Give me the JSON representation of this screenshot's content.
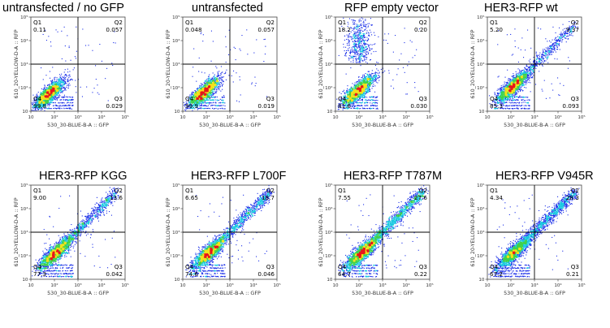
{
  "chart_data": [
    {
      "type": "scatter",
      "title": "untransfected / no GFP",
      "xlabel": "530_30-BLUE-B-A :: GFP",
      "ylabel": "610_20-YELLOW-D-A :: RFP",
      "xscale": "log",
      "yscale": "log",
      "xlim": [
        10,
        100000
      ],
      "ylim": [
        10,
        100000
      ],
      "x_ticks": [
        "10",
        "10²",
        "10³",
        "10⁴",
        "10⁵"
      ],
      "y_ticks": [
        "10",
        "10²",
        "10³",
        "10⁴",
        "10⁵"
      ],
      "gate": {
        "x": 1000,
        "y": 1000
      },
      "quadrants": [
        {
          "name": "Q1",
          "value": "0.11"
        },
        {
          "name": "Q2",
          "value": "0.057"
        },
        {
          "name": "Q3",
          "value": "0.029"
        },
        {
          "name": "Q4",
          "value": "99.8"
        }
      ],
      "population": {
        "main_center": [
          60,
          55
        ],
        "diagonal_tail": 0,
        "upper_cloud": 0
      }
    },
    {
      "type": "scatter",
      "title": "untransfected",
      "xlabel": "530_30-BLUE-B-A :: GFP",
      "ylabel": "610_20-YELLOW-D-A :: RFP",
      "xscale": "log",
      "yscale": "log",
      "xlim": [
        10,
        100000
      ],
      "ylim": [
        10,
        100000
      ],
      "x_ticks": [
        "10",
        "10²",
        "10³",
        "10⁴",
        "10⁵"
      ],
      "y_ticks": [
        "10",
        "10²",
        "10³",
        "10⁴",
        "10⁵"
      ],
      "gate": {
        "x": 1000,
        "y": 1000
      },
      "quadrants": [
        {
          "name": "Q1",
          "value": "0.048"
        },
        {
          "name": "Q2",
          "value": "0.057"
        },
        {
          "name": "Q3",
          "value": "0.019"
        },
        {
          "name": "Q4",
          "value": "99.9"
        }
      ],
      "population": {
        "main_center": [
          80,
          65
        ],
        "diagonal_tail": 0,
        "upper_cloud": 0
      }
    },
    {
      "type": "scatter",
      "title": "RFP empty vector",
      "xlabel": "530_30-BLUE-B-A :: GFP",
      "ylabel": "610_20-YELLOW-D-A :: RFP",
      "xscale": "log",
      "yscale": "log",
      "xlim": [
        10,
        100000
      ],
      "ylim": [
        10,
        100000
      ],
      "x_ticks": [
        "10",
        "10²",
        "10³",
        "10⁴",
        "10⁵"
      ],
      "y_ticks": [
        "10",
        "10²",
        "10³",
        "10⁴",
        "10⁵"
      ],
      "gate": {
        "x": 1000,
        "y": 1000
      },
      "quadrants": [
        {
          "name": "Q1",
          "value": "18.2"
        },
        {
          "name": "Q2",
          "value": "0.20"
        },
        {
          "name": "Q3",
          "value": "0.030"
        },
        {
          "name": "Q4",
          "value": "81.6"
        }
      ],
      "population": {
        "main_center": [
          100,
          80
        ],
        "diagonal_tail": 0,
        "upper_cloud": 0.2
      }
    },
    {
      "type": "scatter",
      "title": "HER3-RFP wt",
      "xlabel": "530_30-BLUE-B-A :: GFP",
      "ylabel": "610_20-YELLOW-D-A :: RFP",
      "xscale": "log",
      "yscale": "log",
      "xlim": [
        10,
        100000
      ],
      "ylim": [
        10,
        100000
      ],
      "x_ticks": [
        "10",
        "10²",
        "10³",
        "10⁴",
        "10⁵"
      ],
      "y_ticks": [
        "10",
        "10²",
        "10³",
        "10⁴",
        "10⁵"
      ],
      "gate": {
        "x": 1000,
        "y": 1000
      },
      "quadrants": [
        {
          "name": "Q1",
          "value": "5.20"
        },
        {
          "name": "Q2",
          "value": "9.37"
        },
        {
          "name": "Q3",
          "value": "0.093"
        },
        {
          "name": "Q4",
          "value": "85.3"
        }
      ],
      "population": {
        "main_center": [
          120,
          110
        ],
        "diagonal_tail": 0.18,
        "upper_cloud": 0
      }
    },
    {
      "type": "scatter",
      "title": "HER3-RFP KGG",
      "xlabel": "530_30-BLUE-B-A :: GFP",
      "ylabel": "610_20-YELLOW-D-A :: RFP",
      "xscale": "log",
      "yscale": "log",
      "xlim": [
        10,
        100000
      ],
      "ylim": [
        10,
        100000
      ],
      "x_ticks": [
        "10",
        "10²",
        "10³",
        "10⁴",
        "10⁵"
      ],
      "y_ticks": [
        "10",
        "10²",
        "10³",
        "10⁴",
        "10⁵"
      ],
      "gate": {
        "x": 1000,
        "y": 1000
      },
      "quadrants": [
        {
          "name": "Q1",
          "value": "9.00"
        },
        {
          "name": "Q2",
          "value": "13.6"
        },
        {
          "name": "Q3",
          "value": "0.042"
        },
        {
          "name": "Q4",
          "value": "77.3"
        }
      ],
      "population": {
        "main_center": [
          110,
          130
        ],
        "diagonal_tail": 0.26,
        "upper_cloud": 0
      }
    },
    {
      "type": "scatter",
      "title": "HER3-RFP L700F",
      "xlabel": "530_30-BLUE-B-A :: GFP",
      "ylabel": "610_20-YELLOW-D-A :: RFP",
      "xscale": "log",
      "yscale": "log",
      "xlim": [
        10,
        100000
      ],
      "ylim": [
        10,
        100000
      ],
      "x_ticks": [
        "10",
        "10²",
        "10³",
        "10⁴",
        "10⁵"
      ],
      "y_ticks": [
        "10",
        "10²",
        "10³",
        "10⁴",
        "10⁵"
      ],
      "gate": {
        "x": 1000,
        "y": 1000
      },
      "quadrants": [
        {
          "name": "Q1",
          "value": "6.65"
        },
        {
          "name": "Q2",
          "value": "18.7"
        },
        {
          "name": "Q3",
          "value": "0.046"
        },
        {
          "name": "Q4",
          "value": "74.6"
        }
      ],
      "population": {
        "main_center": [
          120,
          120
        ],
        "diagonal_tail": 0.3,
        "upper_cloud": 0
      }
    },
    {
      "type": "scatter",
      "title": "HER3-RFP T787M",
      "xlabel": "530_30-BLUE-B-A :: GFP",
      "ylabel": "610_20-YELLOW-D-A :: RFP",
      "xscale": "log",
      "yscale": "log",
      "xlim": [
        10,
        100000
      ],
      "ylim": [
        10,
        100000
      ],
      "x_ticks": [
        "10",
        "10²",
        "10³",
        "10⁴",
        "10⁵"
      ],
      "y_ticks": [
        "10",
        "10²",
        "10³",
        "10⁴",
        "10⁵"
      ],
      "gate": {
        "x": 1000,
        "y": 1000
      },
      "quadrants": [
        {
          "name": "Q1",
          "value": "7.55"
        },
        {
          "name": "Q2",
          "value": "27.6"
        },
        {
          "name": "Q3",
          "value": "0.22"
        },
        {
          "name": "Q4",
          "value": "64.7"
        }
      ],
      "population": {
        "main_center": [
          130,
          130
        ],
        "diagonal_tail": 0.38,
        "upper_cloud": 0
      }
    },
    {
      "type": "scatter",
      "title": "HER3-RFP V945R",
      "xlabel": "530_30-BLUE-B-A :: GFP",
      "ylabel": "610_20-YELLOW-D-A :: RFP",
      "xscale": "log",
      "yscale": "log",
      "xlim": [
        10,
        100000
      ],
      "ylim": [
        10,
        100000
      ],
      "x_ticks": [
        "10",
        "10²",
        "10³",
        "10⁴",
        "10⁵"
      ],
      "y_ticks": [
        "10",
        "10²",
        "10³",
        "10⁴",
        "10⁵"
      ],
      "gate": {
        "x": 1000,
        "y": 1000
      },
      "quadrants": [
        {
          "name": "Q1",
          "value": "4.34"
        },
        {
          "name": "Q2",
          "value": "28.3"
        },
        {
          "name": "Q3",
          "value": "0.21"
        },
        {
          "name": "Q4",
          "value": "67.2"
        }
      ],
      "population": {
        "main_center": [
          130,
          130
        ],
        "diagonal_tail": 0.38,
        "upper_cloud": 0
      }
    }
  ],
  "colors": {
    "density_low": "#1a2ee8",
    "density_mid": "#18c8e0",
    "density_midhigh": "#3fd24a",
    "density_high": "#f2e21b",
    "density_peak": "#e8161b",
    "gate_line": "#000000",
    "frame": "#444444"
  }
}
